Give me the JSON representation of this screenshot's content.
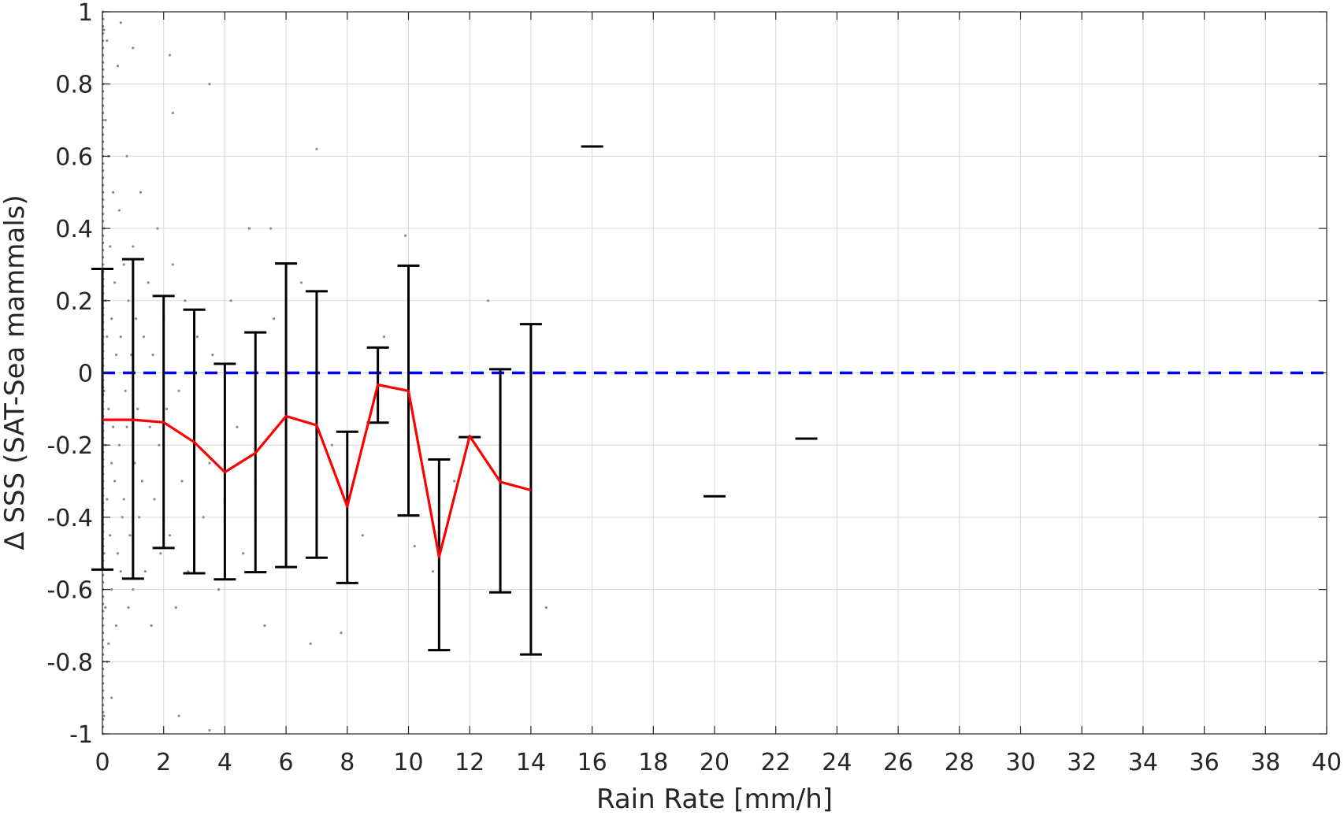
{
  "chart_data": {
    "type": "scatter",
    "title": "",
    "xlabel": "Rain Rate [mm/h]",
    "ylabel": "Δ SSS (SAT-Sea mammals)",
    "xlim": [
      0,
      40
    ],
    "ylim": [
      -1,
      1
    ],
    "x_ticks": [
      "0",
      "2",
      "4",
      "6",
      "8",
      "10",
      "12",
      "14",
      "16",
      "18",
      "20",
      "22",
      "24",
      "26",
      "28",
      "30",
      "32",
      "34",
      "36",
      "38",
      "40"
    ],
    "y_ticks": [
      "-1",
      "-0.8",
      "-0.6",
      "-0.4",
      "-0.2",
      "0",
      "0.2",
      "0.4",
      "0.6",
      "0.8",
      "1"
    ],
    "grid": true,
    "reference_line": {
      "y": 0,
      "style": "dashed",
      "color": "#0000ff"
    },
    "mean_line": {
      "color": "#ff0000",
      "x": [
        0,
        1,
        2,
        3,
        4,
        5,
        6,
        7,
        8,
        9,
        10,
        11,
        12,
        13,
        14
      ],
      "y": [
        -0.13,
        -0.13,
        -0.137,
        -0.192,
        -0.275,
        -0.222,
        -0.12,
        -0.145,
        -0.37,
        -0.033,
        -0.05,
        -0.51,
        -0.175,
        -0.302,
        -0.325
      ]
    },
    "error_bars": [
      {
        "x": 0,
        "lower": -0.545,
        "upper": 0.288
      },
      {
        "x": 1,
        "lower": -0.57,
        "upper": 0.315
      },
      {
        "x": 2,
        "lower": -0.485,
        "upper": 0.213
      },
      {
        "x": 3,
        "lower": -0.555,
        "upper": 0.175
      },
      {
        "x": 4,
        "lower": -0.572,
        "upper": 0.025
      },
      {
        "x": 5,
        "lower": -0.552,
        "upper": 0.112
      },
      {
        "x": 6,
        "lower": -0.538,
        "upper": 0.303
      },
      {
        "x": 7,
        "lower": -0.512,
        "upper": 0.226
      },
      {
        "x": 8,
        "lower": -0.582,
        "upper": -0.163
      },
      {
        "x": 9,
        "lower": -0.138,
        "upper": 0.07
      },
      {
        "x": 10,
        "lower": -0.395,
        "upper": 0.297
      },
      {
        "x": 11,
        "lower": -0.768,
        "upper": -0.24
      },
      {
        "x": 12,
        "lower": -0.178,
        "upper": -0.178
      },
      {
        "x": 13,
        "lower": -0.608,
        "upper": 0.01
      },
      {
        "x": 14,
        "lower": -0.78,
        "upper": 0.135
      },
      {
        "x": 16,
        "lower": 0.627,
        "upper": 0.627
      },
      {
        "x": 20,
        "lower": -0.342,
        "upper": -0.342
      },
      {
        "x": 23,
        "lower": -0.182,
        "upper": -0.182
      }
    ],
    "scatter_points": [
      [
        0.05,
        0.95
      ],
      [
        0.1,
        0.7
      ],
      [
        0.05,
        0.4
      ],
      [
        0.1,
        0.2
      ],
      [
        0.15,
        0.1
      ],
      [
        0.05,
        -0.05
      ],
      [
        0.1,
        -0.2
      ],
      [
        0.15,
        -0.35
      ],
      [
        0.05,
        -0.5
      ],
      [
        0.1,
        -0.65
      ],
      [
        0.15,
        -0.8
      ],
      [
        0.05,
        -0.95
      ],
      [
        0.2,
        0.6
      ],
      [
        0.25,
        0.35
      ],
      [
        0.3,
        0.15
      ],
      [
        0.2,
        -0.1
      ],
      [
        0.3,
        -0.25
      ],
      [
        0.25,
        -0.45
      ],
      [
        0.3,
        -0.6
      ],
      [
        0.2,
        -0.75
      ],
      [
        0.3,
        -0.9
      ],
      [
        0.35,
        0.5
      ],
      [
        0.4,
        0.25
      ],
      [
        0.35,
        -0.15
      ],
      [
        0.45,
        0.05
      ],
      [
        0.4,
        -0.3
      ],
      [
        0.5,
        -0.5
      ],
      [
        0.45,
        -0.7
      ],
      [
        0.55,
        0.45
      ],
      [
        0.6,
        0.1
      ],
      [
        0.55,
        -0.2
      ],
      [
        0.65,
        -0.4
      ],
      [
        0.6,
        -0.55
      ],
      [
        0.7,
        0.3
      ],
      [
        0.75,
        -0.05
      ],
      [
        0.7,
        -0.35
      ],
      [
        0.8,
        0.6
      ],
      [
        0.85,
        0.2
      ],
      [
        0.8,
        -0.15
      ],
      [
        0.9,
        -0.45
      ],
      [
        0.85,
        -0.65
      ],
      [
        0.95,
        0.05
      ],
      [
        1.0,
        0.35
      ],
      [
        1.05,
        -0.25
      ],
      [
        1.0,
        -0.6
      ],
      [
        1.1,
        0.15
      ],
      [
        1.15,
        -0.1
      ],
      [
        1.2,
        -0.4
      ],
      [
        1.25,
        0.5
      ],
      [
        1.3,
        -0.3
      ],
      [
        1.35,
        0.1
      ],
      [
        1.4,
        -0.55
      ],
      [
        1.5,
        0.25
      ],
      [
        1.55,
        -0.15
      ],
      [
        1.6,
        -0.7
      ],
      [
        1.65,
        0.05
      ],
      [
        1.7,
        -0.35
      ],
      [
        1.8,
        0.4
      ],
      [
        1.85,
        -0.2
      ],
      [
        1.9,
        -0.5
      ],
      [
        2.0,
        0.15
      ],
      [
        2.1,
        -0.1
      ],
      [
        2.2,
        -0.45
      ],
      [
        2.3,
        0.3
      ],
      [
        2.4,
        -0.65
      ],
      [
        2.5,
        -0.05
      ],
      [
        2.6,
        -0.3
      ],
      [
        2.7,
        0.2
      ],
      [
        2.8,
        -0.55
      ],
      [
        3.0,
        -0.15
      ],
      [
        3.1,
        0.1
      ],
      [
        3.3,
        -0.4
      ],
      [
        3.5,
        -0.25
      ],
      [
        3.6,
        0.05
      ],
      [
        3.8,
        -0.6
      ],
      [
        4.0,
        -0.35
      ],
      [
        4.2,
        0.2
      ],
      [
        4.4,
        -0.15
      ],
      [
        4.6,
        -0.5
      ],
      [
        4.8,
        0.4
      ],
      [
        5.0,
        -0.3
      ],
      [
        5.3,
        -0.7
      ],
      [
        5.6,
        0.15
      ],
      [
        6.0,
        -0.4
      ],
      [
        6.5,
        0.25
      ],
      [
        6.8,
        -0.75
      ],
      [
        7.5,
        -0.2
      ],
      [
        7.8,
        -0.72
      ],
      [
        8.5,
        -0.45
      ],
      [
        9.2,
        0.1
      ],
      [
        9.9,
        0.38
      ],
      [
        10.2,
        -0.48
      ],
      [
        10.8,
        -0.55
      ],
      [
        11.5,
        -0.3
      ],
      [
        12.6,
        0.2
      ],
      [
        14.5,
        -0.65
      ],
      [
        0.15,
        0.92
      ],
      [
        0.5,
        0.85
      ],
      [
        0.6,
        0.97
      ],
      [
        1.0,
        0.9
      ],
      [
        2.2,
        0.88
      ],
      [
        3.5,
        0.8
      ],
      [
        2.3,
        0.72
      ],
      [
        7.0,
        0.62
      ],
      [
        4.8,
        0.4
      ],
      [
        5.5,
        0.4
      ],
      [
        3.5,
        -0.99
      ],
      [
        2.5,
        -0.95
      ]
    ]
  }
}
